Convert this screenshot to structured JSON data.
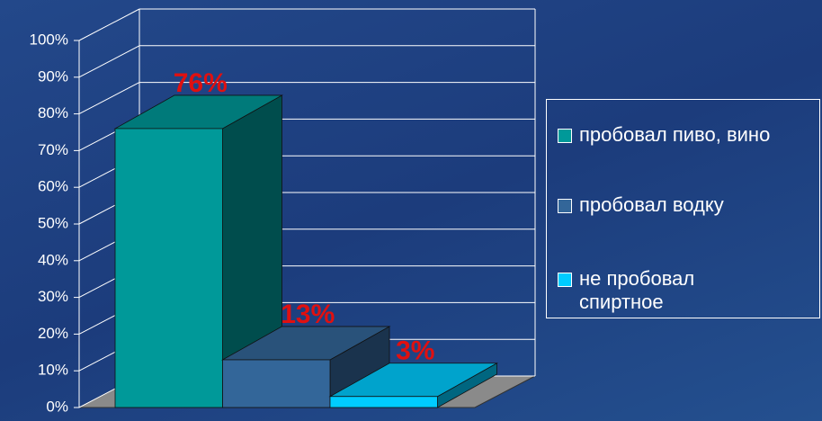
{
  "chart_data": {
    "type": "bar",
    "series": [
      {
        "name": "пробовал пиво, вино",
        "color": "#009999",
        "values": [
          76
        ],
        "value_labels": [
          "76%"
        ]
      },
      {
        "name": "пробовал водку",
        "color": "#336699",
        "values": [
          13
        ],
        "value_labels": [
          "13%"
        ]
      },
      {
        "name": "не пробовал спиртное",
        "color": "#00ccff",
        "values": [
          3
        ],
        "value_labels": [
          "3%"
        ]
      }
    ],
    "ylim": [
      0,
      100
    ],
    "yticks": [
      {
        "value": 0,
        "label": "0%"
      },
      {
        "value": 10,
        "label": "10%"
      },
      {
        "value": 20,
        "label": "20%"
      },
      {
        "value": 30,
        "label": "30%"
      },
      {
        "value": 40,
        "label": "40%"
      },
      {
        "value": 50,
        "label": "50%"
      },
      {
        "value": 60,
        "label": "60%"
      },
      {
        "value": 70,
        "label": "70%"
      },
      {
        "value": 80,
        "label": "80%"
      },
      {
        "value": 90,
        "label": "90%"
      },
      {
        "value": 100,
        "label": "100%"
      }
    ],
    "grid": true,
    "legend": "right"
  }
}
